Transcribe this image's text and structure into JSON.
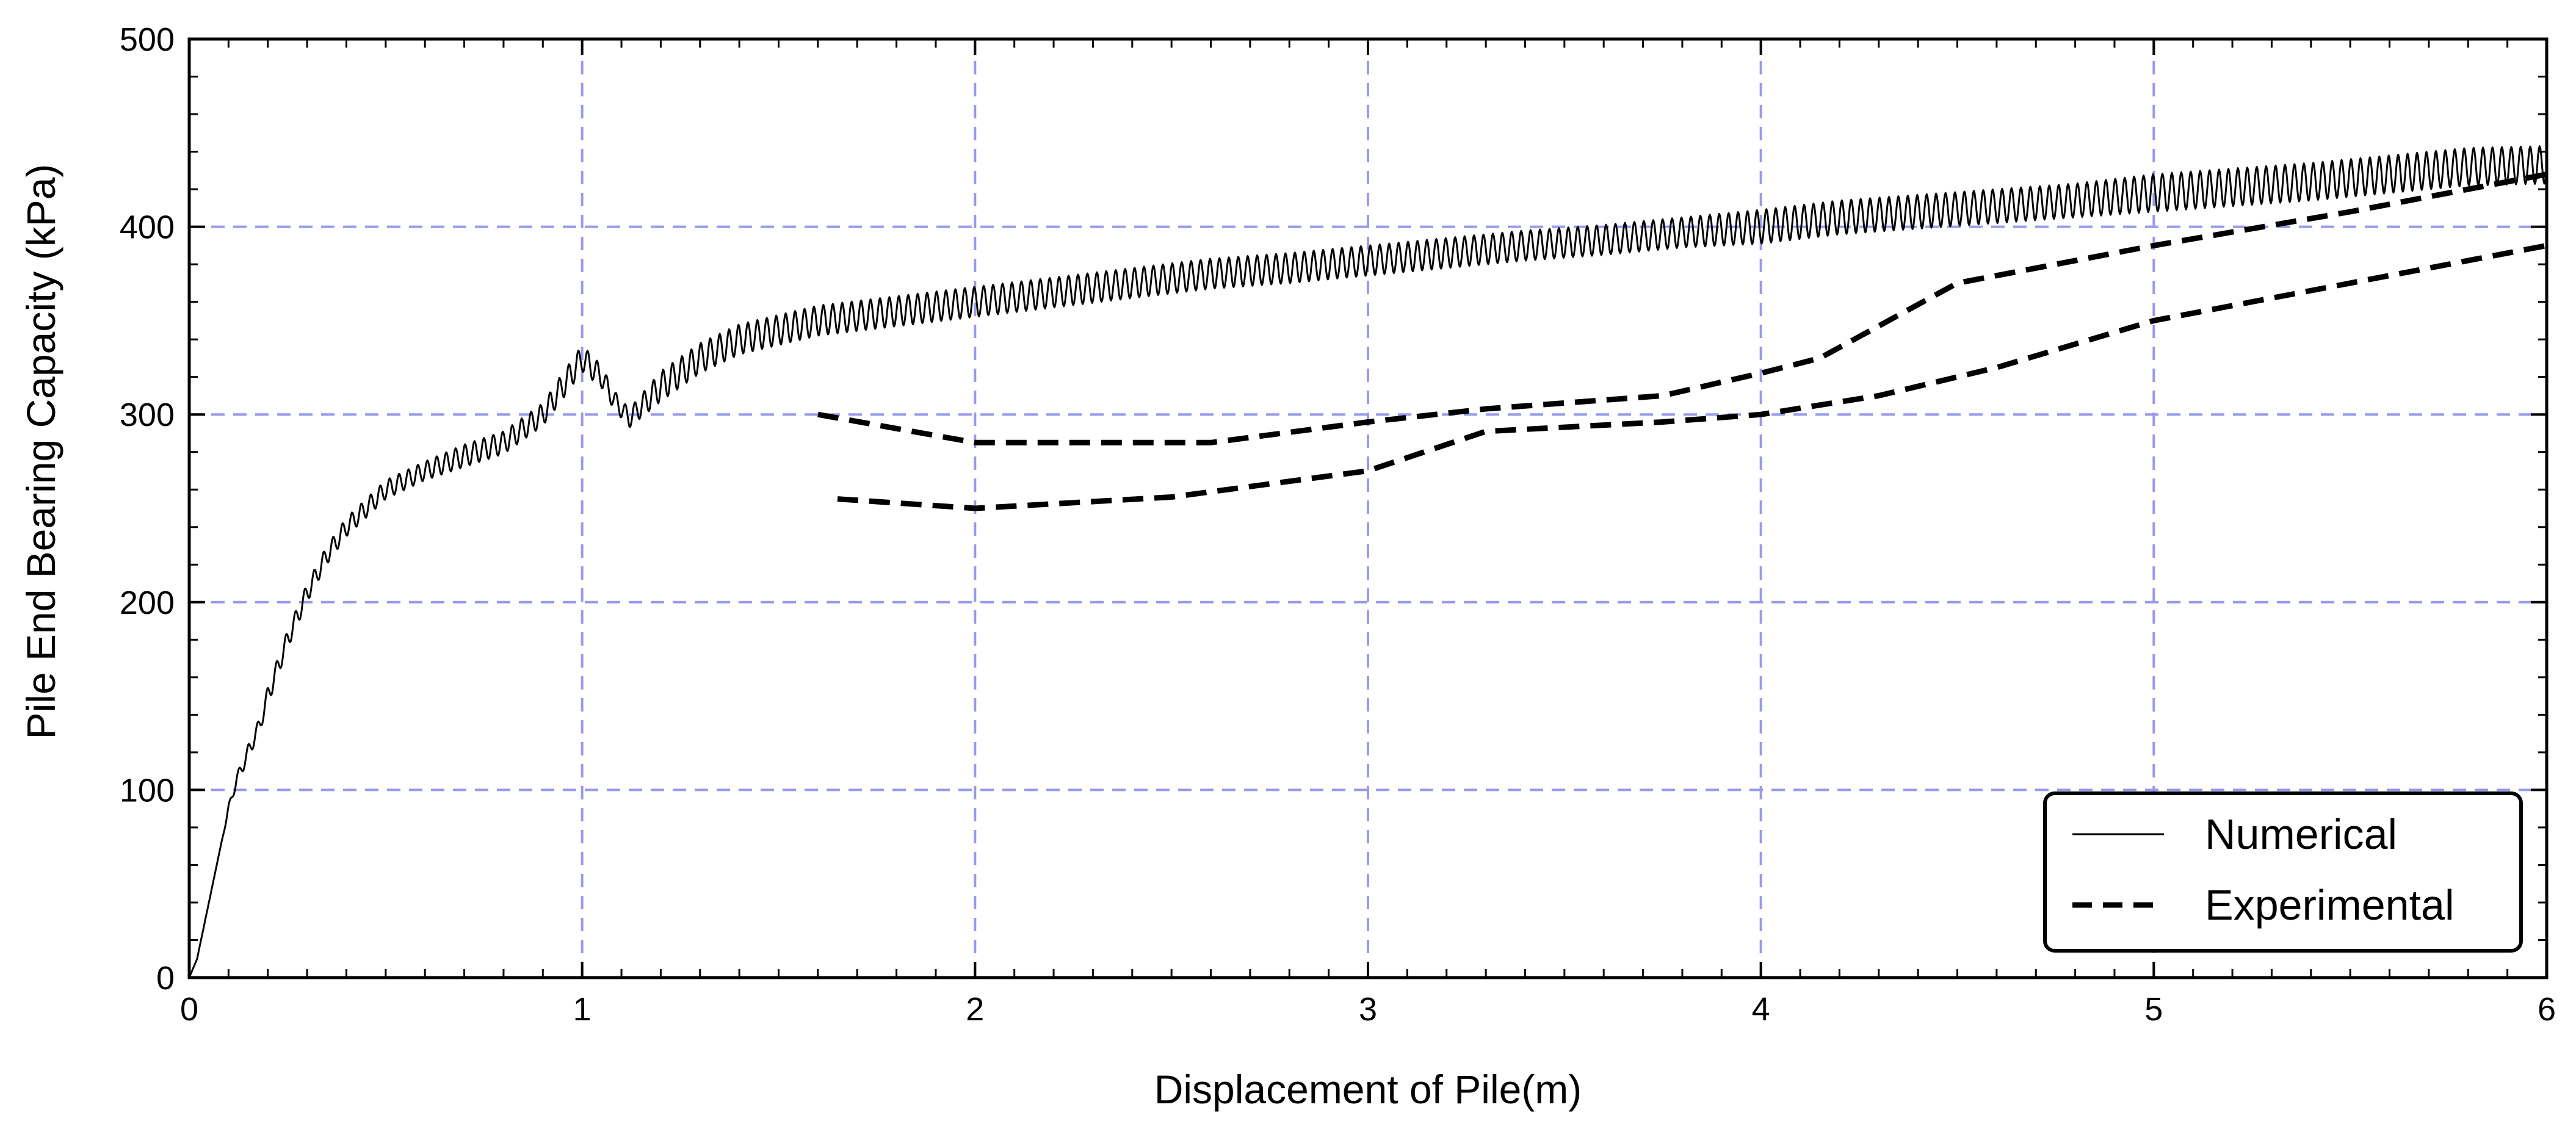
{
  "chart_data": {
    "type": "line",
    "title": "",
    "xlabel": "Displacement of Pile(m)",
    "ylabel": "Pile End Bearing Capacity (kPa)",
    "xlim": [
      0,
      6
    ],
    "ylim": [
      0,
      500
    ],
    "xticks": [
      0,
      1,
      2,
      3,
      4,
      5,
      6
    ],
    "yticks": [
      0,
      100,
      200,
      300,
      400,
      500
    ],
    "xtick_labels": [
      "0",
      "1",
      "2",
      "3",
      "4",
      "5",
      "6"
    ],
    "ytick_labels": [
      "0",
      "100",
      "200",
      "300",
      "400",
      "500"
    ],
    "grid": true,
    "grid_color": "#9999ee",
    "legend_position": "bottom-right",
    "series": [
      {
        "name": "Numerical",
        "style": "solid",
        "color": "#000000",
        "x": [
          0.0,
          0.02,
          0.04,
          0.06,
          0.08,
          0.1,
          0.12,
          0.15,
          0.18,
          0.2,
          0.25,
          0.3,
          0.35,
          0.4,
          0.45,
          0.5,
          0.6,
          0.7,
          0.8,
          0.9,
          0.95,
          1.0,
          1.05,
          1.08,
          1.12,
          1.2,
          1.3,
          1.4,
          1.5,
          1.6,
          1.8,
          2.0,
          2.2,
          2.4,
          2.6,
          2.8,
          3.0,
          3.2,
          3.4,
          3.6,
          3.8,
          4.0,
          4.2,
          4.4,
          4.6,
          4.8,
          5.0,
          5.2,
          5.4,
          5.6,
          5.8,
          6.0
        ],
        "y": [
          0,
          10,
          30,
          50,
          70,
          90,
          105,
          120,
          135,
          150,
          180,
          205,
          225,
          240,
          250,
          260,
          270,
          278,
          285,
          300,
          315,
          330,
          320,
          308,
          298,
          315,
          330,
          340,
          345,
          350,
          355,
          360,
          365,
          370,
          375,
          378,
          382,
          386,
          390,
          393,
          397,
          400,
          405,
          408,
          411,
          414,
          418,
          421,
          424,
          428,
          432,
          433
        ],
        "oscillation_amplitude": [
          0,
          0,
          0,
          0,
          0,
          2,
          3,
          4,
          4,
          5,
          5,
          5,
          5,
          5,
          5,
          5,
          5,
          6,
          6,
          6,
          7,
          7,
          6,
          5,
          5,
          8,
          8,
          8,
          8,
          8,
          8,
          8,
          8,
          8,
          8,
          8,
          8,
          8,
          8,
          8,
          8,
          9,
          9,
          9,
          9,
          9,
          10,
          10,
          10,
          10,
          10,
          10
        ],
        "oscillation_period": 0.024
      },
      {
        "name": "Experimental",
        "style": "dashed",
        "color": "#000000",
        "x": [
          1.6,
          2.0,
          2.6,
          3.0,
          3.3,
          3.75,
          4.0,
          4.15,
          4.5,
          5.0,
          5.5,
          6.0
        ],
        "y": [
          300,
          285,
          285,
          296,
          303,
          310,
          322,
          330,
          370,
          390,
          408,
          428
        ]
      },
      {
        "name": "",
        "style": "dashed",
        "color": "#000000",
        "x": [
          1.65,
          2.0,
          2.5,
          3.0,
          3.3,
          3.75,
          4.0,
          4.3,
          4.6,
          5.0,
          5.5,
          6.0
        ],
        "y": [
          255,
          250,
          256,
          270,
          291,
          296,
          300,
          310,
          325,
          350,
          370,
          390
        ]
      }
    ]
  }
}
